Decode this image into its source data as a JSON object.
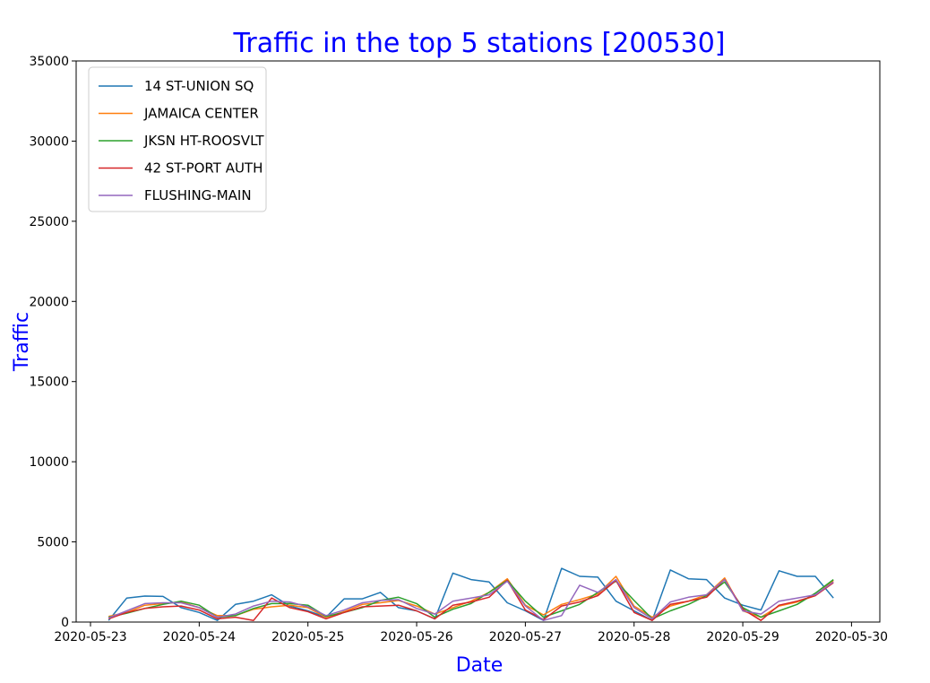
{
  "chart_data": {
    "type": "line",
    "title": "Traffic in the top 5 stations [200530]",
    "xlabel": "Date",
    "ylabel": "Traffic",
    "x_dates": [
      "2020-05-23 04:00",
      "2020-05-23 08:00",
      "2020-05-23 12:00",
      "2020-05-23 16:00",
      "2020-05-23 20:00",
      "2020-05-24 00:00",
      "2020-05-24 04:00",
      "2020-05-24 08:00",
      "2020-05-24 12:00",
      "2020-05-24 16:00",
      "2020-05-24 20:00",
      "2020-05-25 00:00",
      "2020-05-25 04:00",
      "2020-05-25 08:00",
      "2020-05-25 12:00",
      "2020-05-25 16:00",
      "2020-05-25 20:00",
      "2020-05-26 00:00",
      "2020-05-26 04:00",
      "2020-05-26 08:00",
      "2020-05-26 12:00",
      "2020-05-26 16:00",
      "2020-05-26 20:00",
      "2020-05-27 00:00",
      "2020-05-27 04:00",
      "2020-05-27 08:00",
      "2020-05-27 12:00",
      "2020-05-27 16:00",
      "2020-05-27 20:00",
      "2020-05-28 00:00",
      "2020-05-28 04:00",
      "2020-05-28 08:00",
      "2020-05-28 12:00",
      "2020-05-28 16:00",
      "2020-05-28 20:00",
      "2020-05-29 00:00",
      "2020-05-29 04:00",
      "2020-05-29 08:00",
      "2020-05-29 12:00",
      "2020-05-29 16:00",
      "2020-05-29 20:00"
    ],
    "series": [
      {
        "name": "14 ST-UNION SQ",
        "color": "#1f77b4",
        "values": [
          100,
          1500,
          1620,
          1600,
          900,
          600,
          100,
          1100,
          1300,
          1700,
          1000,
          700,
          300,
          1450,
          1450,
          1850,
          900,
          700,
          200,
          3050,
          2650,
          2500,
          1200,
          700,
          100,
          3350,
          2850,
          2800,
          1300,
          700,
          100,
          3250,
          2700,
          2650,
          1500,
          1050,
          750,
          3200,
          2850,
          2850,
          1500
        ]
      },
      {
        "name": "JAMAICA CENTER",
        "color": "#ff7f0e",
        "values": [
          350,
          600,
          1050,
          1150,
          1250,
          900,
          400,
          400,
          800,
          950,
          1050,
          900,
          300,
          650,
          1100,
          1200,
          1350,
          1000,
          500,
          900,
          1300,
          1850,
          2700,
          1050,
          450,
          1100,
          1400,
          1750,
          2850,
          1000,
          300,
          1000,
          1300,
          1700,
          2750,
          700,
          300,
          1000,
          1250,
          1650,
          2600
        ]
      },
      {
        "name": "JKSN HT-ROOSVLT",
        "color": "#2ca02c",
        "values": [
          300,
          550,
          850,
          1100,
          1300,
          1050,
          300,
          400,
          850,
          1150,
          1150,
          1050,
          350,
          600,
          900,
          1350,
          1550,
          1150,
          300,
          800,
          1150,
          1850,
          2600,
          1300,
          300,
          700,
          1100,
          1850,
          2550,
          1350,
          200,
          700,
          1100,
          1650,
          2500,
          900,
          300,
          700,
          1100,
          1800,
          2650
        ]
      },
      {
        "name": "42 ST-PORT AUTH",
        "color": "#d62728",
        "values": [
          200,
          600,
          850,
          950,
          1000,
          750,
          200,
          300,
          100,
          1500,
          900,
          650,
          200,
          600,
          950,
          1000,
          1050,
          700,
          200,
          1050,
          1250,
          1550,
          2600,
          750,
          150,
          1000,
          1250,
          1650,
          2600,
          600,
          100,
          1100,
          1300,
          1550,
          2650,
          800,
          100,
          1050,
          1300,
          1650,
          2450
        ]
      },
      {
        "name": "FLUSHING-MAIN",
        "color": "#9467bd",
        "values": [
          250,
          700,
          1150,
          1200,
          1200,
          900,
          300,
          500,
          1000,
          1300,
          1250,
          950,
          400,
          750,
          1200,
          1350,
          1400,
          850,
          500,
          1300,
          1500,
          1700,
          2550,
          1000,
          100,
          400,
          2300,
          1850,
          2650,
          900,
          200,
          1250,
          1550,
          1700,
          2650,
          700,
          500,
          1300,
          1500,
          1700,
          2500
        ]
      }
    ],
    "x_ticks": [
      "2020-05-23",
      "2020-05-24",
      "2020-05-25",
      "2020-05-26",
      "2020-05-27",
      "2020-05-28",
      "2020-05-29",
      "2020-05-30"
    ],
    "xlim": [
      "2020-05-22 20:50",
      "2020-05-30 06:15"
    ],
    "ylim": [
      0,
      35000
    ],
    "y_ticks": [
      0,
      5000,
      10000,
      15000,
      20000,
      25000,
      30000,
      35000
    ],
    "grid": false,
    "legend_position": "upper left"
  }
}
